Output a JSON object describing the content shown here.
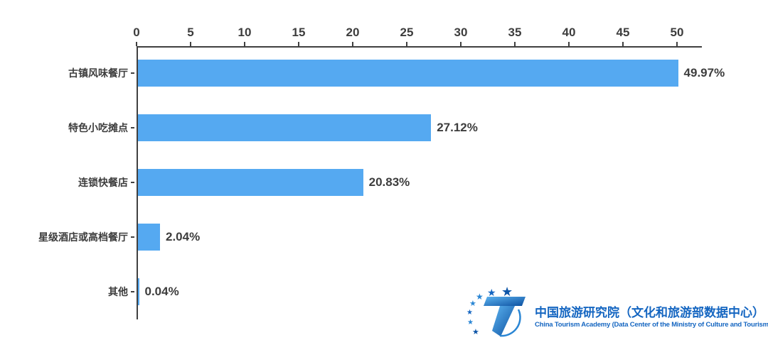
{
  "chart_data": {
    "type": "bar",
    "orientation": "horizontal",
    "title": "",
    "categories": [
      "古镇风味餐厅",
      "特色小吃摊点",
      "连锁快餐店",
      "星级酒店或高档餐厅",
      "其他"
    ],
    "values": [
      49.97,
      27.12,
      20.83,
      2.04,
      0.04
    ],
    "value_labels": [
      "49.97%",
      "27.12%",
      "20.83%",
      "2.04%",
      "0.04%"
    ],
    "x_ticks": [
      "0",
      "5",
      "10",
      "15",
      "20",
      "25",
      "30",
      "35",
      "40",
      "45",
      "50"
    ],
    "xlim": [
      0,
      52.3
    ],
    "grid": false,
    "legend": "none",
    "bar_color": "#55a9f1",
    "axis_color": "#404040",
    "text_color": "#3d3d3d"
  },
  "branding": {
    "logo_icon": "china-tourism-academy-logo",
    "org_name_cn": "中国旅游研究院（文化和旅游部数据中心）",
    "org_name_en": "China Tourism Academy (Data Center of the Ministry of Culture and Tourism)",
    "brand_color": "#1566c1"
  }
}
